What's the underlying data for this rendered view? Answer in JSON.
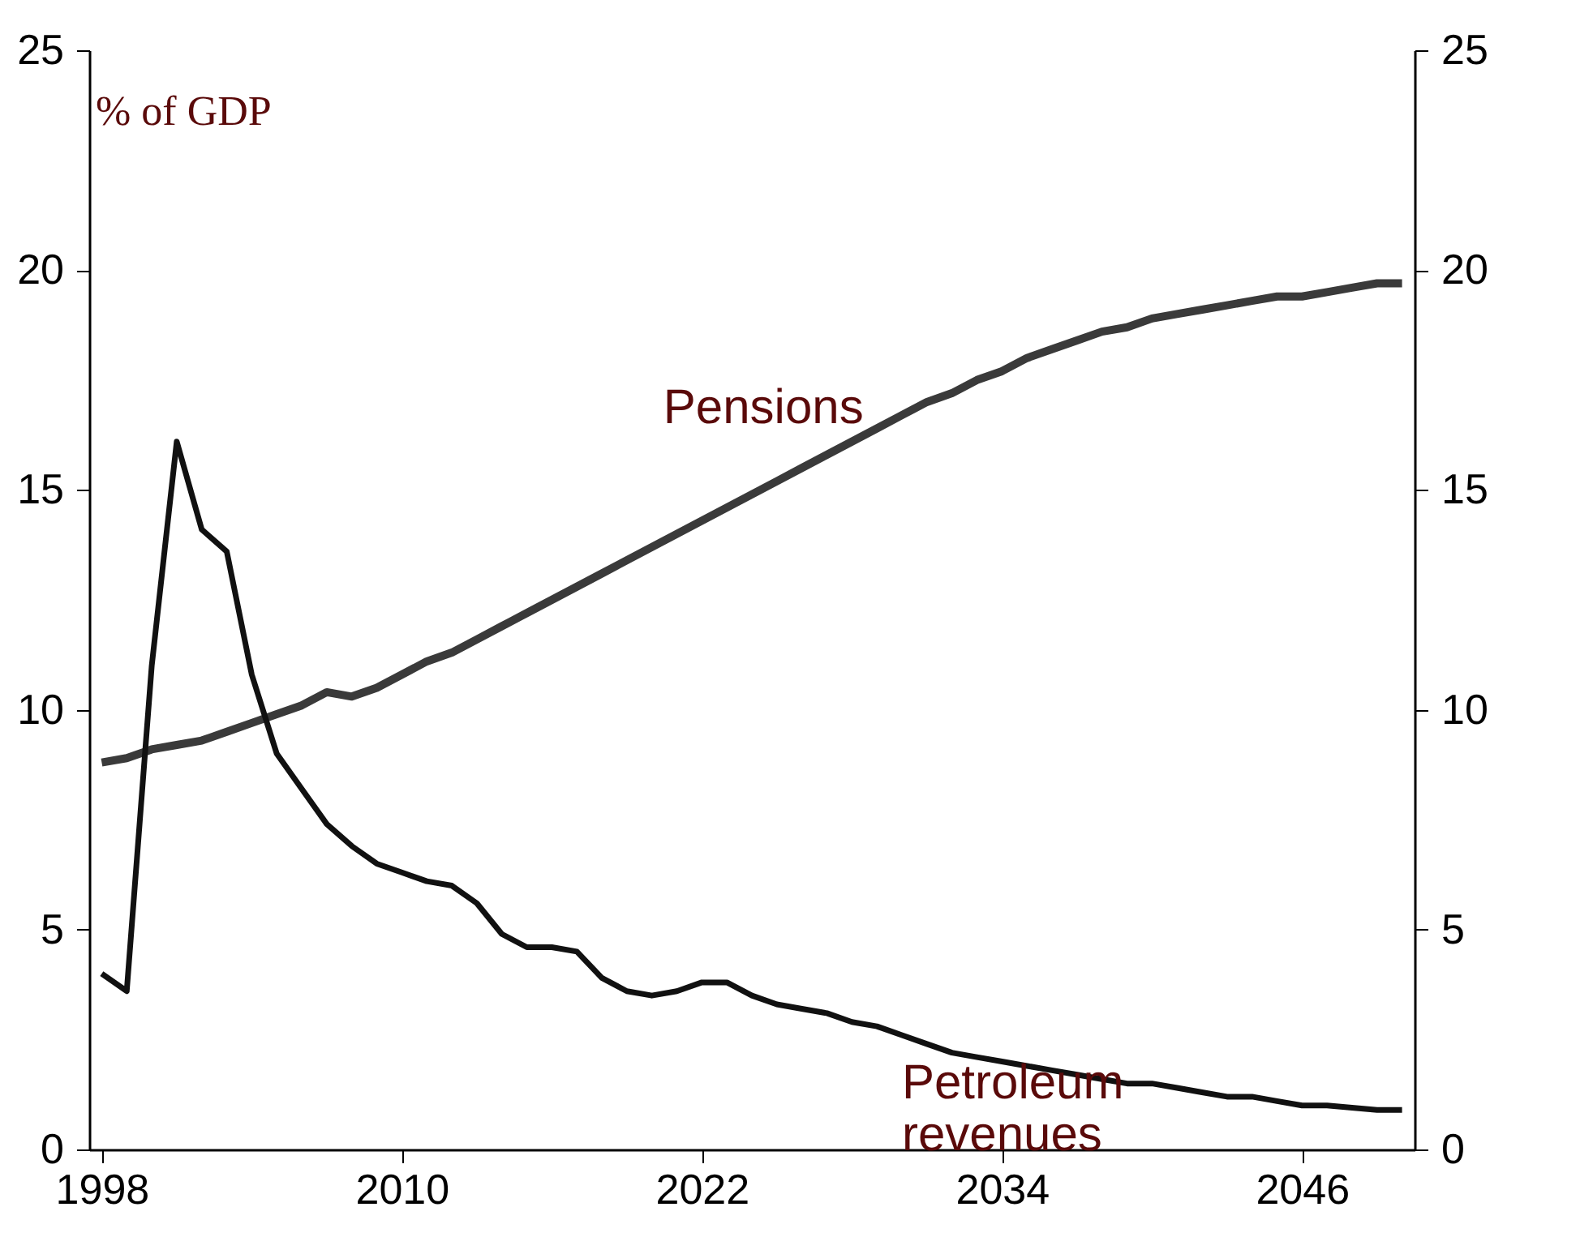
{
  "chart_data": {
    "type": "line",
    "ylabel": "% of GDP",
    "x": [
      1998,
      1999,
      2000,
      2001,
      2002,
      2003,
      2004,
      2005,
      2006,
      2007,
      2008,
      2009,
      2010,
      2011,
      2012,
      2013,
      2014,
      2015,
      2016,
      2017,
      2018,
      2019,
      2020,
      2021,
      2022,
      2023,
      2024,
      2025,
      2026,
      2027,
      2028,
      2029,
      2030,
      2031,
      2032,
      2033,
      2034,
      2035,
      2036,
      2037,
      2038,
      2039,
      2040,
      2041,
      2042,
      2043,
      2044,
      2045,
      2046,
      2047,
      2048,
      2049,
      2050
    ],
    "series": [
      {
        "name": "Pensions",
        "color": "#3a3a3a",
        "values": [
          8.8,
          8.9,
          9.1,
          9.2,
          9.3,
          9.5,
          9.7,
          9.9,
          10.1,
          10.4,
          10.3,
          10.5,
          10.8,
          11.1,
          11.3,
          11.6,
          11.9,
          12.2,
          12.5,
          12.8,
          13.1,
          13.4,
          13.7,
          14.0,
          14.3,
          14.6,
          14.9,
          15.2,
          15.5,
          15.8,
          16.1,
          16.4,
          16.7,
          17.0,
          17.2,
          17.5,
          17.7,
          18.0,
          18.2,
          18.4,
          18.6,
          18.7,
          18.9,
          19.0,
          19.1,
          19.2,
          19.3,
          19.4,
          19.4,
          19.5,
          19.6,
          19.7,
          19.7
        ]
      },
      {
        "name": "Petroleum revenues",
        "color": "#111111",
        "values": [
          4.0,
          3.6,
          11.0,
          16.1,
          14.1,
          13.6,
          10.8,
          9.0,
          8.2,
          7.4,
          6.9,
          6.5,
          6.3,
          6.1,
          6.0,
          5.6,
          4.9,
          4.6,
          4.6,
          4.5,
          3.9,
          3.6,
          3.5,
          3.6,
          3.8,
          3.8,
          3.5,
          3.3,
          3.2,
          3.1,
          2.9,
          2.8,
          2.6,
          2.4,
          2.2,
          2.1,
          2.0,
          1.9,
          1.8,
          1.7,
          1.6,
          1.5,
          1.5,
          1.4,
          1.3,
          1.2,
          1.2,
          1.1,
          1.0,
          1.0,
          0.95,
          0.9,
          0.9
        ]
      }
    ],
    "xlim": [
      1997.5,
      2050.5
    ],
    "xticks": [
      1998,
      2010,
      2022,
      2034,
      2046
    ],
    "ylim": [
      0,
      25
    ],
    "yticks": [
      0,
      5,
      10,
      15,
      20,
      25
    ],
    "y2lim": [
      0,
      25
    ],
    "y2ticks": [
      0,
      5,
      10,
      15,
      20,
      25
    ],
    "grid": false,
    "marker": "none",
    "line_style": "solid"
  }
}
